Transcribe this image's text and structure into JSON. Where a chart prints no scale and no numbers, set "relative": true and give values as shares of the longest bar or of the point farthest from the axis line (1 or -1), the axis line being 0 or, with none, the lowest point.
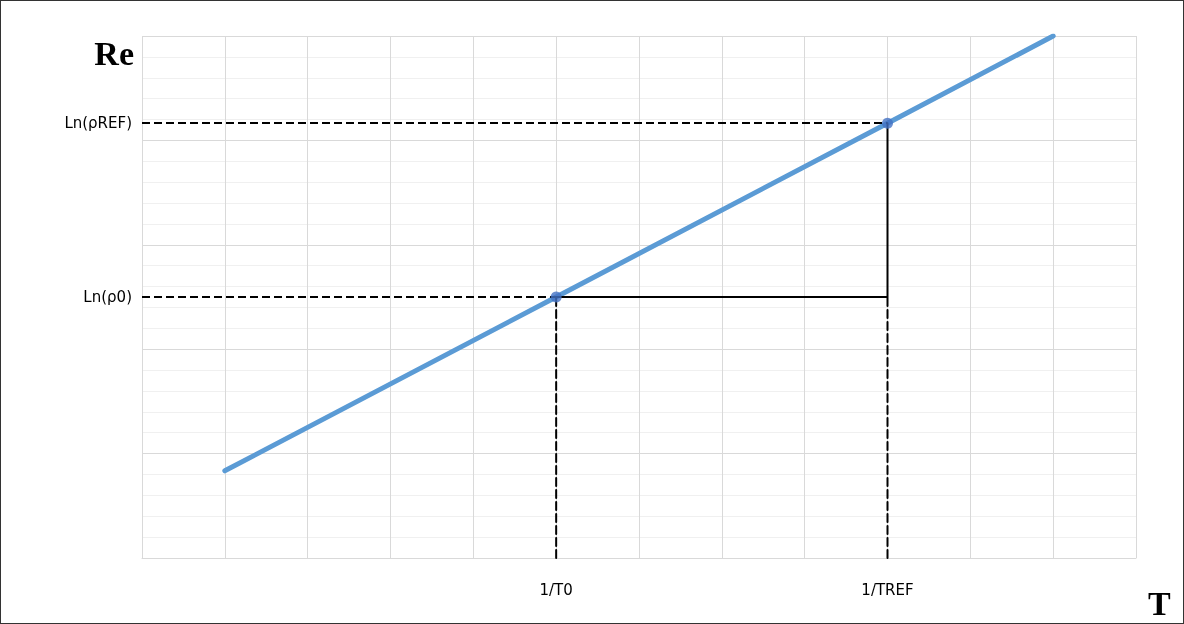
{
  "chart_data": {
    "type": "line",
    "xlabel": "T",
    "ylabel": "Re",
    "relative": true,
    "grid": true,
    "categories": [
      null,
      null,
      null,
      null,
      null,
      "1/T0",
      null,
      null,
      null,
      "1/TREF",
      null,
      null,
      null
    ],
    "series": [
      {
        "color": "#5b9bd5",
        "marker": "none",
        "values": [
          null,
          0.167,
          null,
          null,
          null,
          0.5,
          null,
          null,
          null,
          0.833,
          null,
          1,
          null
        ]
      },
      {
        "type": "scatter",
        "color": "#4472c4",
        "marker": "circle",
        "x": [
          "1/T0",
          "1/TREF"
        ],
        "values": [
          0.5,
          0.833
        ]
      },
      {
        "type": "line",
        "color": "#000000",
        "marker": "none",
        "line_style": "solid",
        "x": [
          "1/T0",
          "1/TREF",
          "1/TREF"
        ],
        "values": [
          0.5,
          0.5,
          0.833
        ]
      },
      {
        "type": "line",
        "color": "#000000",
        "marker": "none",
        "line_style": "dashed",
        "x": [
          "1/T0",
          "1/T0"
        ],
        "values": [
          0,
          0.5
        ]
      },
      {
        "type": "line",
        "color": "#000000",
        "marker": "none",
        "line_style": "dashed",
        "x": [
          "1/TREF",
          "1/TREF"
        ],
        "values": [
          0,
          0.5
        ]
      }
    ],
    "ref_lines": [
      {
        "axis": "y",
        "value": 0.833,
        "label": "Ln(ρREF)",
        "color": "#000000",
        "line_style": "dashed"
      },
      {
        "axis": "y",
        "value": 0.5,
        "label": "Ln(ρ0)",
        "color": "#000000",
        "line_style": "dashed"
      }
    ]
  }
}
